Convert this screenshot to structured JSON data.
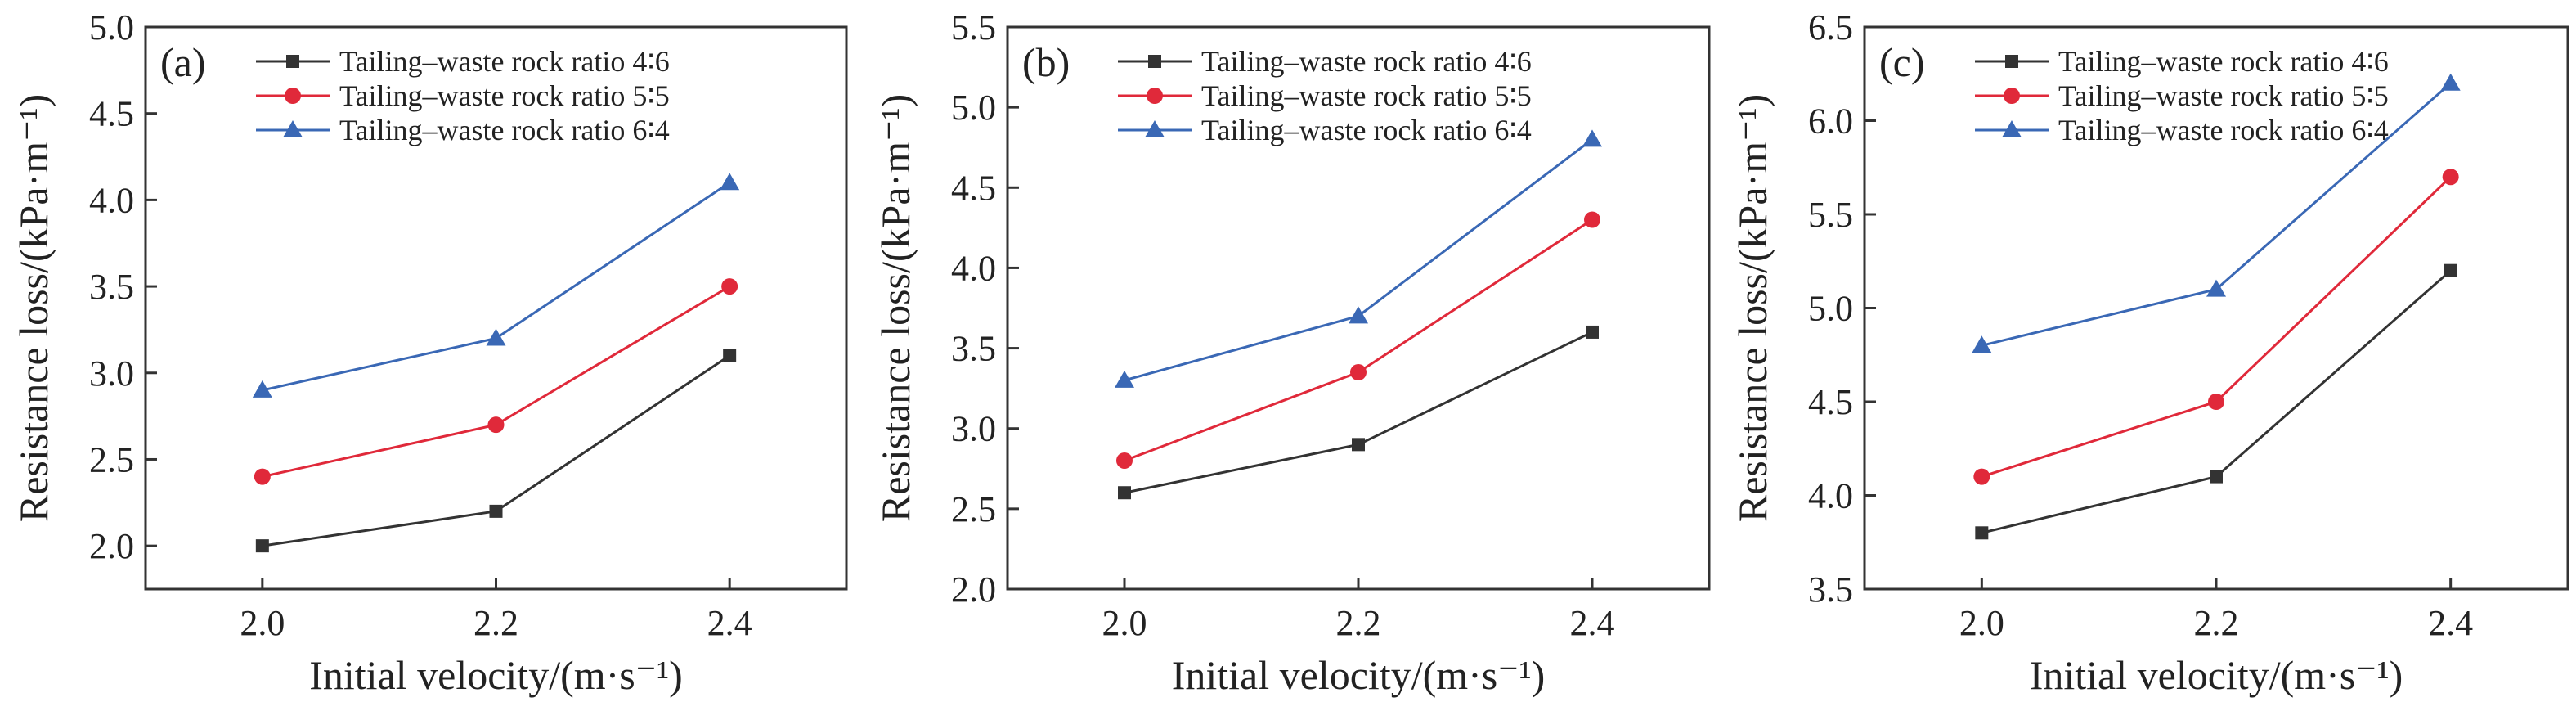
{
  "chart_data": [
    {
      "type": "line",
      "panel_label": "(a)",
      "xlabel": "Initial velocity/(m·s⁻¹)",
      "ylabel": "Resistance loss/(kPa·m⁻¹)",
      "x": [
        2.0,
        2.2,
        2.4
      ],
      "x_tick_labels": [
        "2.0",
        "2.2",
        "2.4"
      ],
      "xlim": [
        1.9,
        2.5
      ],
      "ylim": [
        1.75,
        5.0
      ],
      "y_ticks": [
        2.0,
        2.5,
        3.0,
        3.5,
        4.0,
        4.5,
        5.0
      ],
      "y_tick_labels": [
        "2.0",
        "2.5",
        "3.0",
        "3.5",
        "4.0",
        "4.5",
        "5.0"
      ],
      "grid": false,
      "legend_position": "top-left",
      "series": [
        {
          "name": "Tailing–waste rock ratio 4∶6",
          "color": "#333333",
          "marker": "square",
          "values": [
            2.0,
            2.2,
            3.1
          ]
        },
        {
          "name": "Tailing–waste rock ratio 5∶5",
          "color": "#e0293a",
          "marker": "circle",
          "values": [
            2.4,
            2.7,
            3.5
          ]
        },
        {
          "name": "Tailing–waste rock ratio 6∶4",
          "color": "#3a68b5",
          "marker": "triangle",
          "values": [
            2.9,
            3.2,
            4.1
          ]
        }
      ]
    },
    {
      "type": "line",
      "panel_label": "(b)",
      "xlabel": "Initial velocity/(m·s⁻¹)",
      "ylabel": "Resistance loss/(kPa·m⁻¹)",
      "x": [
        2.0,
        2.2,
        2.4
      ],
      "x_tick_labels": [
        "2.0",
        "2.2",
        "2.4"
      ],
      "xlim": [
        1.9,
        2.5
      ],
      "ylim": [
        2.0,
        5.5
      ],
      "y_ticks": [
        2.0,
        2.5,
        3.0,
        3.5,
        4.0,
        4.5,
        5.0,
        5.5
      ],
      "y_tick_labels": [
        "2.0",
        "2.5",
        "3.0",
        "3.5",
        "4.0",
        "4.5",
        "5.0",
        "5.5"
      ],
      "grid": false,
      "legend_position": "top-left",
      "series": [
        {
          "name": "Tailing–waste rock ratio 4∶6",
          "color": "#333333",
          "marker": "square",
          "values": [
            2.6,
            2.9,
            3.6
          ]
        },
        {
          "name": "Tailing–waste rock ratio 5∶5",
          "color": "#e0293a",
          "marker": "circle",
          "values": [
            2.8,
            3.35,
            4.3
          ]
        },
        {
          "name": "Tailing–waste rock ratio 6∶4",
          "color": "#3a68b5",
          "marker": "triangle",
          "values": [
            3.3,
            3.7,
            4.8
          ]
        }
      ]
    },
    {
      "type": "line",
      "panel_label": "(c)",
      "xlabel": "Initial velocity/(m·s⁻¹)",
      "ylabel": "Resistance loss/(kPa·m⁻¹)",
      "x": [
        2.0,
        2.2,
        2.4
      ],
      "x_tick_labels": [
        "2.0",
        "2.2",
        "2.4"
      ],
      "xlim": [
        1.9,
        2.5
      ],
      "ylim": [
        3.5,
        6.5
      ],
      "y_ticks": [
        3.5,
        4.0,
        4.5,
        5.0,
        5.5,
        6.0,
        6.5
      ],
      "y_tick_labels": [
        "3.5",
        "4.0",
        "4.5",
        "5.0",
        "5.5",
        "6.0",
        "6.5"
      ],
      "grid": false,
      "legend_position": "top-left",
      "series": [
        {
          "name": "Tailing–waste rock ratio 4∶6",
          "color": "#333333",
          "marker": "square",
          "values": [
            3.8,
            4.1,
            5.2
          ]
        },
        {
          "name": "Tailing–waste rock ratio 5∶5",
          "color": "#e0293a",
          "marker": "circle",
          "values": [
            4.1,
            4.5,
            5.7
          ]
        },
        {
          "name": "Tailing–waste rock ratio 6∶4",
          "color": "#3a68b5",
          "marker": "triangle",
          "values": [
            4.8,
            5.1,
            6.2
          ]
        }
      ]
    }
  ]
}
